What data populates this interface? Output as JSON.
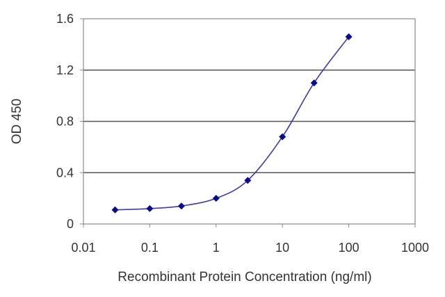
{
  "chart_data": {
    "type": "line",
    "xlabel": "Recombinant Protein Concentration (ng/ml)",
    "ylabel": "OD 450",
    "xscale": "log",
    "xlim": [
      0.01,
      1000
    ],
    "ylim": [
      0,
      1.6
    ],
    "xticks": [
      "0.01",
      "0.1",
      "1",
      "10",
      "100",
      "1000"
    ],
    "yticks": [
      "0",
      "0.4",
      "0.8",
      "1.2",
      "1.6"
    ],
    "grid": "horizontal",
    "legend": "none",
    "series": [
      {
        "x": [
          0.03,
          0.1,
          0.3,
          1,
          3,
          10,
          30,
          100
        ],
        "y": [
          0.11,
          0.12,
          0.14,
          0.2,
          0.34,
          0.68,
          1.1,
          1.46
        ]
      }
    ],
    "colors": {
      "line": "#3a3aa8",
      "marker": "#0a0a8c",
      "grid": "#555555",
      "frame": "#888888"
    }
  }
}
